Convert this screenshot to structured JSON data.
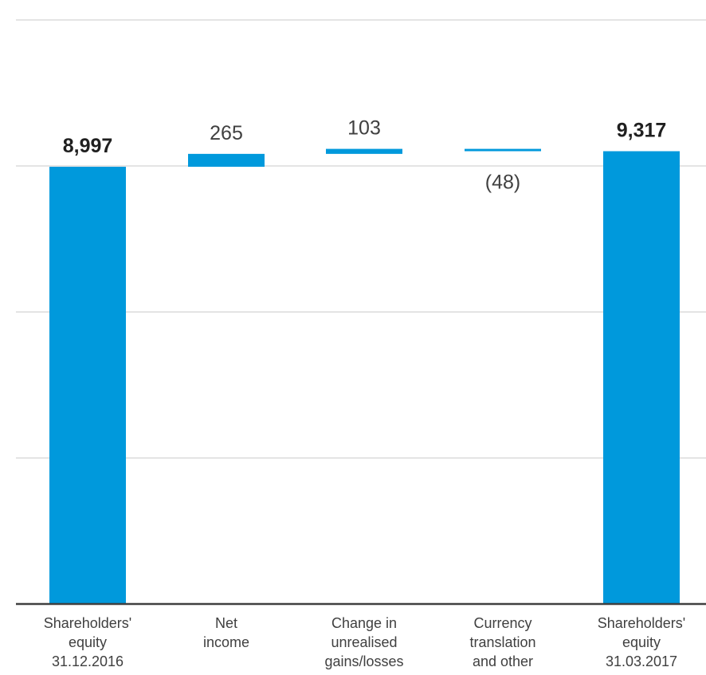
{
  "chart_data": {
    "type": "bar",
    "subtype": "waterfall",
    "categories": [
      [
        "Shareholders'",
        "equity",
        "31.12.2016"
      ],
      [
        "Net",
        "income"
      ],
      [
        "Change in",
        "unrealised",
        "gains/losses"
      ],
      [
        "Currency",
        "translation",
        "and other"
      ],
      [
        "Shareholders'",
        "equity",
        "31.03.2017"
      ]
    ],
    "values": [
      8997,
      265,
      103,
      -48,
      9317
    ],
    "bar_kind": [
      "total",
      "delta",
      "delta",
      "delta",
      "total"
    ],
    "value_labels": [
      "8,997",
      "265",
      "103",
      "(48)",
      "9,317"
    ],
    "bold_labels": [
      true,
      false,
      false,
      false,
      true
    ],
    "title": "",
    "xlabel": "",
    "ylabel": "",
    "grid": true,
    "colors": {
      "bar": "#0099DC",
      "grid": "#C8C8C8",
      "axis": "#404040",
      "text": "#404040"
    }
  }
}
